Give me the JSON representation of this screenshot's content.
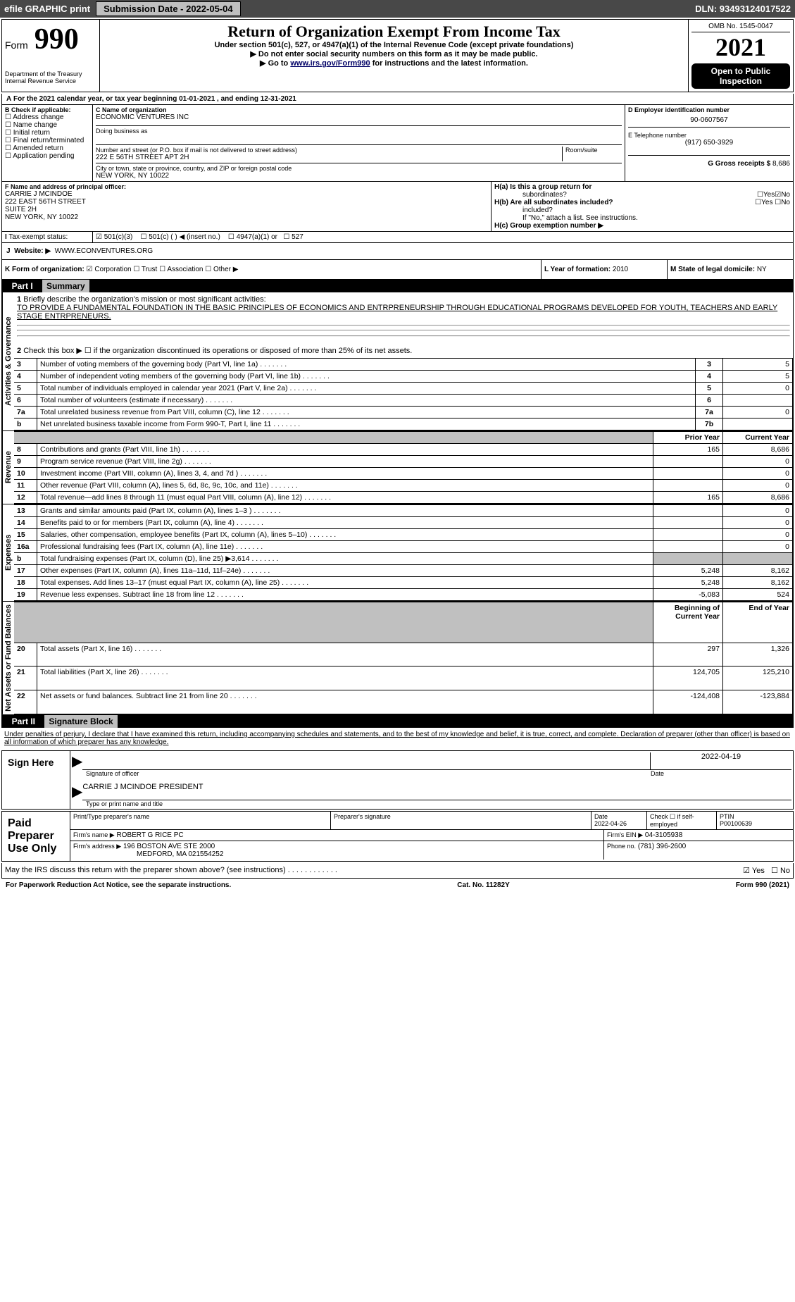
{
  "topbar": {
    "efile": "efile GRAPHIC print",
    "subm": "Submission Date - 2022-05-04",
    "dln": "DLN: 93493124017522"
  },
  "header": {
    "form": "Form",
    "num": "990",
    "title": "Return of Organization Exempt From Income Tax",
    "sub": "Under section 501(c), 527, or 4947(a)(1) of the Internal Revenue Code (except private foundations)",
    "ssn": "▶ Do not enter social security numbers on this form as it may be made public.",
    "goto": "▶ Go to ",
    "gotolink": "www.irs.gov/Form990",
    "goto2": " for instructions and the latest information.",
    "omb": "OMB No. 1545-0047",
    "year": "2021",
    "open": "Open to Public Inspection",
    "dept": "Department of the Treasury",
    "irs": "Internal Revenue Service"
  },
  "a": {
    "line": "For the 2021 calendar year, or tax year beginning 01-01-2021   , and ending 12-31-2021"
  },
  "b": {
    "label": "B Check if applicable:",
    "items": [
      "Address change",
      "Name change",
      "Initial return",
      "Final return/terminated",
      "Amended return",
      "Application pending"
    ]
  },
  "c": {
    "label": "C Name of organization",
    "name": "ECONOMIC VENTURES INC",
    "dba": "Doing business as",
    "streetlabel": "Number and street (or P.O. box if mail is not delivered to street address)",
    "room": "Room/suite",
    "street": "222 E 56TH STREET APT 2H",
    "citylabel": "City or town, state or province, country, and ZIP or foreign postal code",
    "city": "NEW YORK, NY  10022"
  },
  "d": {
    "label": "D Employer identification number",
    "val": "90-0607567"
  },
  "e": {
    "label": "E Telephone number",
    "val": "(917) 650-3929"
  },
  "g": {
    "label": "G Gross receipts $",
    "val": "8,686"
  },
  "f": {
    "label": "F  Name and address of principal officer:",
    "lines": [
      "CARRIE J MCINDOE",
      "222 EAST 56TH STREET",
      "SUITE 2H",
      "NEW YORK, NY  10022"
    ]
  },
  "h": {
    "a": "H(a)  Is this a group return for",
    "a2": "subordinates?",
    "b": "H(b)  Are all subordinates included?",
    "ifno": "If \"No,\" attach a list. See instructions.",
    "c": "H(c)  Group exemption number ▶",
    "yes": "Yes",
    "no": "No"
  },
  "i": {
    "label": "Tax-exempt status:",
    "opts": [
      "501(c)(3)",
      "501(c) (  ) ◀ (insert no.)",
      "4947(a)(1) or",
      "527"
    ]
  },
  "j": {
    "label": "Website: ▶",
    "val": "WWW.ECONVENTURES.ORG"
  },
  "k": {
    "label": "K Form of organization:",
    "opts": [
      "Corporation",
      "Trust",
      "Association",
      "Other ▶"
    ]
  },
  "l": {
    "label": "L Year of formation:",
    "val": "2010"
  },
  "m": {
    "label": "M State of legal domicile:",
    "val": "NY"
  },
  "part1": {
    "label": "Part I",
    "title": "Summary"
  },
  "side": {
    "ag": "Activities & Governance",
    "rev": "Revenue",
    "exp": "Expenses",
    "net": "Net Assets or Fund Balances"
  },
  "s1": {
    "n": "1",
    "t": "Briefly describe the organization's mission or most significant activities:",
    "v": "TO PROVIDE A FUNDAMENTAL FOUNDATION IN THE BASIC PRINCIPLES OF ECONOMICS AND ENTRPRENEURSHIP THROUGH EDUCATIONAL PROGRAMS DEVELOPED FOR YOUTH, TEACHERS AND EARLY STAGE ENTRPRENEURS."
  },
  "s2": {
    "n": "2",
    "t": "Check this box ▶ ☐ if the organization discontinued its operations or disposed of more than 25% of its net assets."
  },
  "rows": [
    {
      "n": "3",
      "t": "Number of voting members of the governing body (Part VI, line 1a)",
      "box": "3",
      "v": "5"
    },
    {
      "n": "4",
      "t": "Number of independent voting members of the governing body (Part VI, line 1b)",
      "box": "4",
      "v": "5"
    },
    {
      "n": "5",
      "t": "Total number of individuals employed in calendar year 2021 (Part V, line 2a)",
      "box": "5",
      "v": "0"
    },
    {
      "n": "6",
      "t": "Total number of volunteers (estimate if necessary)",
      "box": "6",
      "v": ""
    },
    {
      "n": "7a",
      "t": "Total unrelated business revenue from Part VIII, column (C), line 12",
      "box": "7a",
      "v": "0"
    },
    {
      "n": "b",
      "t": "Net unrelated business taxable income from Form 990-T, Part I, line 11",
      "box": "7b",
      "v": ""
    }
  ],
  "pycy": {
    "py": "Prior Year",
    "cy": "Current Year"
  },
  "rev": [
    {
      "n": "8",
      "t": "Contributions and grants (Part VIII, line 1h)",
      "p": "165",
      "c": "8,686"
    },
    {
      "n": "9",
      "t": "Program service revenue (Part VIII, line 2g)",
      "p": "",
      "c": "0"
    },
    {
      "n": "10",
      "t": "Investment income (Part VIII, column (A), lines 3, 4, and 7d )",
      "p": "",
      "c": "0"
    },
    {
      "n": "11",
      "t": "Other revenue (Part VIII, column (A), lines 5, 6d, 8c, 9c, 10c, and 11e)",
      "p": "",
      "c": "0"
    },
    {
      "n": "12",
      "t": "Total revenue—add lines 8 through 11 (must equal Part VIII, column (A), line 12)",
      "p": "165",
      "c": "8,686"
    }
  ],
  "exp": [
    {
      "n": "13",
      "t": "Grants and similar amounts paid (Part IX, column (A), lines 1–3 )",
      "p": "",
      "c": "0"
    },
    {
      "n": "14",
      "t": "Benefits paid to or for members (Part IX, column (A), line 4)",
      "p": "",
      "c": "0"
    },
    {
      "n": "15",
      "t": "Salaries, other compensation, employee benefits (Part IX, column (A), lines 5–10)",
      "p": "",
      "c": "0"
    },
    {
      "n": "16a",
      "t": "Professional fundraising fees (Part IX, column (A), line 11e)",
      "p": "",
      "c": "0"
    },
    {
      "n": "b",
      "t": "Total fundraising expenses (Part IX, column (D), line 25) ▶3,614",
      "p": "shade",
      "c": "shade"
    },
    {
      "n": "17",
      "t": "Other expenses (Part IX, column (A), lines 11a–11d, 11f–24e)",
      "p": "5,248",
      "c": "8,162"
    },
    {
      "n": "18",
      "t": "Total expenses. Add lines 13–17 (must equal Part IX, column (A), line 25)",
      "p": "5,248",
      "c": "8,162"
    },
    {
      "n": "19",
      "t": "Revenue less expenses. Subtract line 18 from line 12",
      "p": "-5,083",
      "c": "524"
    }
  ],
  "bceoy": {
    "b": "Beginning of Current Year",
    "e": "End of Year"
  },
  "net": [
    {
      "n": "20",
      "t": "Total assets (Part X, line 16)",
      "p": "297",
      "c": "1,326"
    },
    {
      "n": "21",
      "t": "Total liabilities (Part X, line 26)",
      "p": "124,705",
      "c": "125,210"
    },
    {
      "n": "22",
      "t": "Net assets or fund balances. Subtract line 21 from line 20",
      "p": "-124,408",
      "c": "-123,884"
    }
  ],
  "part2": {
    "label": "Part II",
    "title": "Signature Block"
  },
  "penal": "Under penalties of perjury, I declare that I have examined this return, including accompanying schedules and statements, and to the best of my knowledge and belief, it is true, correct, and complete. Declaration of preparer (other than officer) is based on all information of which preparer has any knowledge.",
  "sign": {
    "here": "Sign Here",
    "sig": "Signature of officer",
    "date": "Date",
    "dateval": "2022-04-19",
    "name": "CARRIE J MCINDOE PRESIDENT",
    "type": "Type or print name and title"
  },
  "paid": {
    "label": "Paid Preparer Use Only",
    "h": [
      "Print/Type preparer's name",
      "Preparer's signature",
      "Date",
      "Check ☐ if self-employed",
      "PTIN"
    ],
    "dateval": "2022-04-26",
    "ptin": "P00100639",
    "firm": "Firm's name    ▶",
    "firmval": "ROBERT G RICE PC",
    "ein": "Firm's EIN ▶",
    "einval": "04-3105938",
    "addr": "Firm's address ▶",
    "addrval": "196 BOSTON AVE STE 2000",
    "addrval2": "MEDFORD, MA  021554252",
    "phone": "Phone no.",
    "phoneval": "(781) 396-2600"
  },
  "may": {
    "t": "May the IRS discuss this return with the preparer shown above? (see instructions)",
    "yes": "Yes",
    "no": "No"
  },
  "footer": {
    "l": "For Paperwork Reduction Act Notice, see the separate instructions.",
    "c": "Cat. No. 11282Y",
    "r": "Form 990 (2021)"
  }
}
